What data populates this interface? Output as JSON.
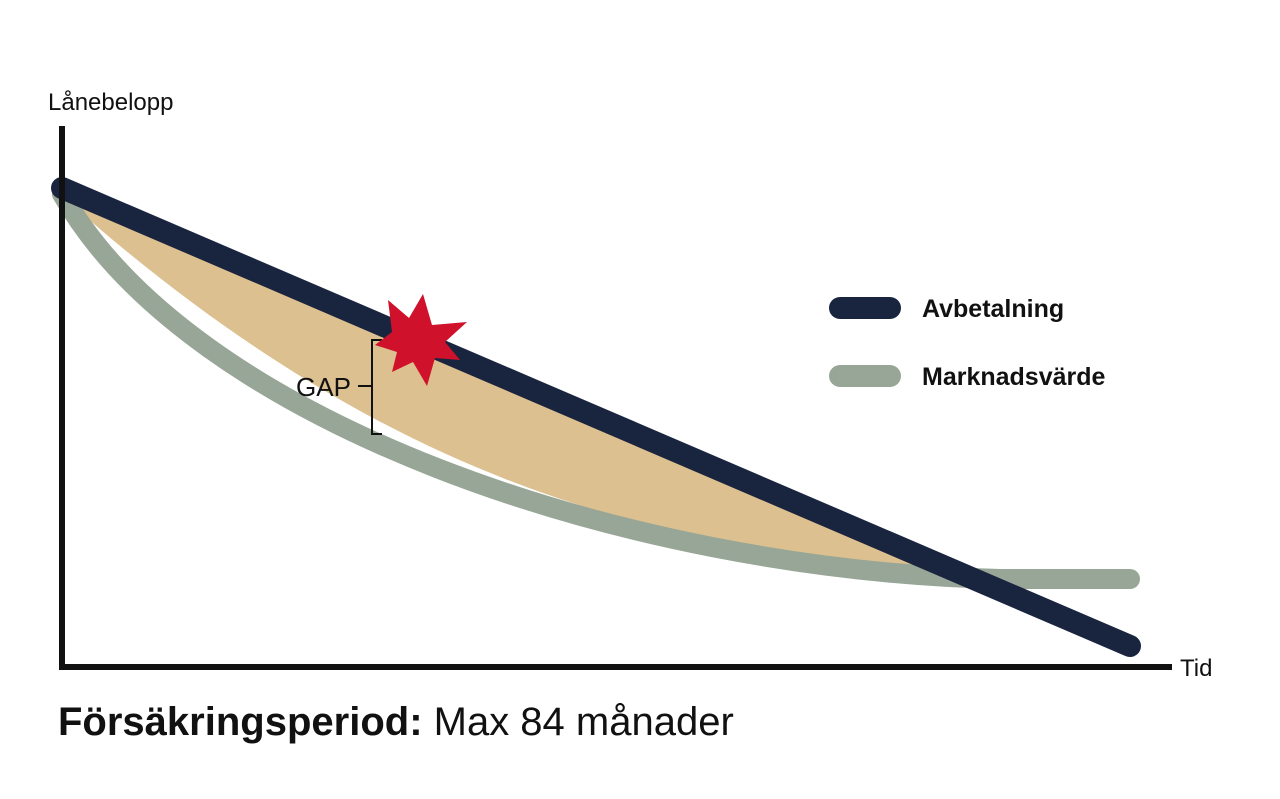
{
  "diagram": {
    "y_axis_label": "Lånebelopp",
    "x_axis_label": "Tid",
    "gap_label": "GAP",
    "legend": [
      {
        "label": "Avbetalning",
        "color": "#19243f"
      },
      {
        "label": "Marknadsvärde",
        "color": "#97a696"
      }
    ],
    "colors": {
      "gap_fill": "#dcc08f",
      "burst": "#d0112b",
      "axis": "#111111"
    }
  },
  "caption": {
    "bold": "Försäkringsperiod:",
    "normal": " Max 84 månader"
  }
}
